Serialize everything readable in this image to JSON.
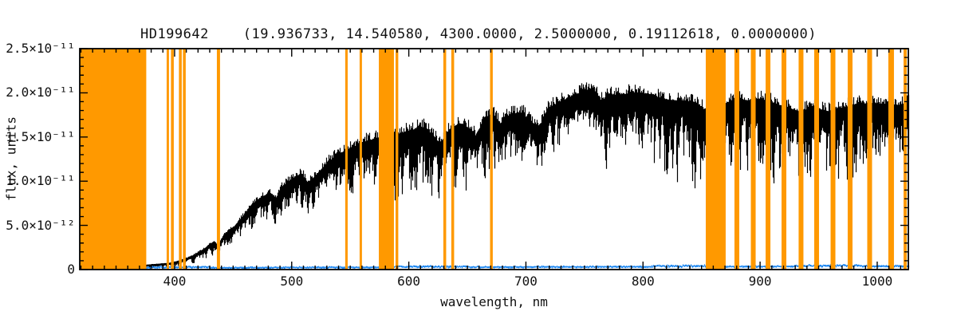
{
  "title": "HD199642    (19.936733, 14.540580, 4300.0000, 2.5000000, 0.19112618, 0.0000000)",
  "axes": {
    "x_label": "wavelength, nm",
    "y_label": "flux, units"
  },
  "colors": {
    "spectrum": "#000000",
    "error_line": "#1E87F0",
    "mask_band": "#FF9900",
    "frame": "#000000",
    "background": "#ffffff"
  },
  "chart_data": {
    "type": "line",
    "title": "HD199642    (19.936733, 14.540580, 4300.0000, 2.5000000, 0.19112618, 0.0000000)",
    "xlabel": "wavelength, nm",
    "ylabel": "flux, units",
    "xlim": [
      319,
      1026.6
    ],
    "ylim_flux": [
      0,
      2.5e-11
    ],
    "flux_unit_scale": "values below are in units of 1e-11",
    "grid": false,
    "legend": "none",
    "x_ticks": [
      {
        "value": 400,
        "label": "400"
      },
      {
        "value": 500,
        "label": "500"
      },
      {
        "value": 600,
        "label": "600"
      },
      {
        "value": 700,
        "label": "700"
      },
      {
        "value": 800,
        "label": "800"
      },
      {
        "value": 900,
        "label": "900"
      },
      {
        "value": 1000,
        "label": "1000"
      }
    ],
    "x_minor_step": 10,
    "y_ticks": [
      {
        "value": 0.0,
        "label": "0"
      },
      {
        "value": 0.5,
        "label": "5.0×10⁻¹²"
      },
      {
        "value": 1.0,
        "label": "1.0×10⁻¹¹"
      },
      {
        "value": 1.5,
        "label": "1.5×10⁻¹¹"
      },
      {
        "value": 2.0,
        "label": "2.0×10⁻¹¹"
      },
      {
        "value": 2.5,
        "label": "2.5×10⁻¹¹"
      }
    ],
    "y_minor_step": 0.1,
    "series": [
      {
        "name": "observed spectrum",
        "color": "#000000",
        "style": "dense noisy absorption spectrum",
        "domain_nm": [
          375.5,
          1026.5
        ],
        "continuum_points": [
          [
            375.5,
            0.04
          ],
          [
            385,
            0.05
          ],
          [
            395,
            0.06
          ],
          [
            405,
            0.09
          ],
          [
            415,
            0.14
          ],
          [
            425,
            0.22
          ],
          [
            433,
            0.3
          ],
          [
            437,
            0.26
          ],
          [
            442,
            0.38
          ],
          [
            450,
            0.46
          ],
          [
            458,
            0.58
          ],
          [
            466,
            0.72
          ],
          [
            474,
            0.8
          ],
          [
            481,
            0.84
          ],
          [
            486,
            0.78
          ],
          [
            492,
            0.92
          ],
          [
            500,
            1.0
          ],
          [
            508,
            1.06
          ],
          [
            514,
            0.95
          ],
          [
            521,
            1.05
          ],
          [
            530,
            1.18
          ],
          [
            540,
            1.28
          ],
          [
            550,
            1.34
          ],
          [
            560,
            1.41
          ],
          [
            572,
            1.45
          ],
          [
            580,
            1.47
          ],
          [
            590,
            1.5
          ],
          [
            598,
            1.53
          ],
          [
            606,
            1.56
          ],
          [
            613,
            1.58
          ],
          [
            621,
            1.48
          ],
          [
            627,
            1.38
          ],
          [
            634,
            1.55
          ],
          [
            643,
            1.62
          ],
          [
            651,
            1.57
          ],
          [
            657,
            1.47
          ],
          [
            664,
            1.68
          ],
          [
            671,
            1.72
          ],
          [
            678,
            1.62
          ],
          [
            686,
            1.72
          ],
          [
            696,
            1.74
          ],
          [
            704,
            1.64
          ],
          [
            711,
            1.58
          ],
          [
            718,
            1.78
          ],
          [
            728,
            1.86
          ],
          [
            740,
            1.93
          ],
          [
            750,
            1.99
          ],
          [
            757,
            2.02
          ],
          [
            764,
            1.88
          ],
          [
            772,
            1.94
          ],
          [
            783,
            1.95
          ],
          [
            795,
            1.97
          ],
          [
            806,
            1.95
          ],
          [
            816,
            1.9
          ],
          [
            826,
            1.88
          ],
          [
            836,
            1.88
          ],
          [
            846,
            1.85
          ],
          [
            852,
            1.78
          ],
          [
            856,
            1.75
          ],
          [
            872,
            1.86
          ],
          [
            880,
            1.9
          ],
          [
            890,
            1.88
          ],
          [
            900,
            1.9
          ],
          [
            912,
            1.85
          ],
          [
            922,
            1.8
          ],
          [
            933,
            1.76
          ],
          [
            945,
            1.8
          ],
          [
            958,
            1.76
          ],
          [
            970,
            1.8
          ],
          [
            982,
            1.84
          ],
          [
            995,
            1.85
          ],
          [
            1008,
            1.84
          ],
          [
            1018,
            1.83
          ],
          [
            1026.5,
            1.85
          ]
        ],
        "absorption_depth_regions": [
          [
            375,
            405,
            0.8,
            0.05
          ],
          [
            405,
            430,
            0.6,
            0.06
          ],
          [
            430,
            470,
            0.45,
            0.06
          ],
          [
            470,
            540,
            0.35,
            0.06
          ],
          [
            540,
            575,
            0.4,
            0.06
          ],
          [
            575,
            605,
            0.5,
            0.06
          ],
          [
            605,
            650,
            0.55,
            0.06
          ],
          [
            650,
            685,
            0.35,
            0.06
          ],
          [
            685,
            705,
            0.4,
            0.06
          ],
          [
            705,
            740,
            0.32,
            0.05
          ],
          [
            740,
            758,
            0.18,
            0.05
          ],
          [
            758,
            772,
            0.45,
            0.05
          ],
          [
            772,
            808,
            0.3,
            0.05
          ],
          [
            808,
            855,
            0.55,
            0.05
          ],
          [
            855,
            928,
            0.45,
            0.05
          ],
          [
            928,
            985,
            0.55,
            0.05
          ],
          [
            985,
            1027,
            0.38,
            0.05
          ]
        ]
      },
      {
        "name": "error spectrum",
        "color": "#1E87F0",
        "style": "thin noisy line near zero",
        "domain_nm": [
          375.5,
          1026.5
        ],
        "base_level": 0.025,
        "red_end_level": 0.045
      }
    ],
    "masked_bands_nm": [
      [
        319,
        375.8
      ],
      [
        393.2,
        395.2
      ],
      [
        396.9,
        399.3
      ],
      [
        403.7,
        406.1
      ],
      [
        407.1,
        409.5
      ],
      [
        436.1,
        438.8
      ],
      [
        545.7,
        547.8
      ],
      [
        558.0,
        560.0
      ],
      [
        574.4,
        587.3
      ],
      [
        588.7,
        591.0
      ],
      [
        629.5,
        631.9
      ],
      [
        636.3,
        638.7
      ],
      [
        669.4,
        671.7
      ],
      [
        853.6,
        870.6
      ],
      [
        878.1,
        882.2
      ],
      [
        892.1,
        896.2
      ],
      [
        904.7,
        908.8
      ],
      [
        918.3,
        922.4
      ],
      [
        932.9,
        937.0
      ],
      [
        946.2,
        950.3
      ],
      [
        960.2,
        964.3
      ],
      [
        974.8,
        978.9
      ],
      [
        991.5,
        995.6
      ],
      [
        1009.5,
        1014.3
      ],
      [
        1022.5,
        1025.2
      ]
    ],
    "mask_color": "#FF9900"
  }
}
